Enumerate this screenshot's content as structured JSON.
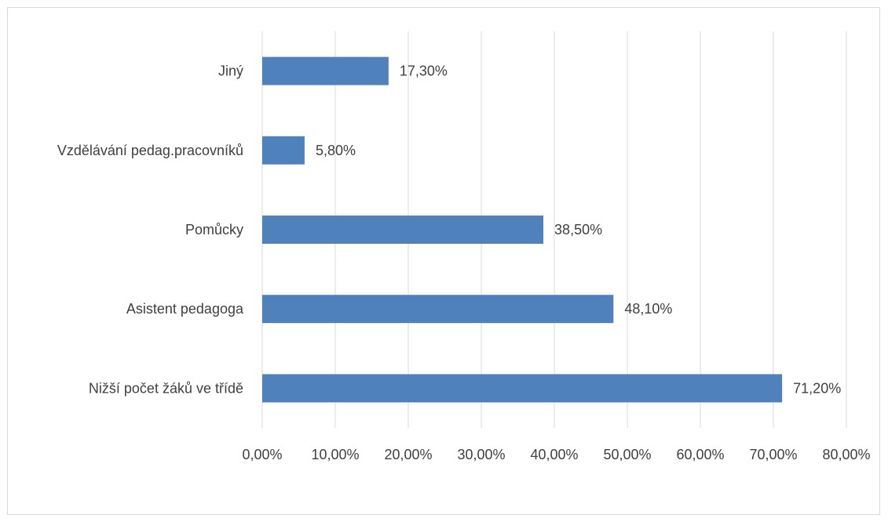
{
  "chart_data": {
    "type": "bar",
    "orientation": "horizontal",
    "title": "",
    "xlabel": "",
    "ylabel": "",
    "categories": [
      "Nižší počet žáků ve třídě",
      "Asistent pedagoga",
      "Pomůcky",
      "Vzdělávání pedag.pracovníků",
      "Jiný"
    ],
    "values": [
      71.2,
      48.1,
      38.5,
      5.8,
      17.3
    ],
    "data_labels": [
      "71,20%",
      "48,10%",
      "38,50%",
      "5,80%",
      "17,30%"
    ],
    "xlim": [
      0,
      80
    ],
    "x_ticks": [
      0,
      10,
      20,
      30,
      40,
      50,
      60,
      70,
      80
    ],
    "x_tick_labels": [
      "0,00%",
      "10,00%",
      "20,00%",
      "30,00%",
      "40,00%",
      "50,00%",
      "60,00%",
      "70,00%",
      "80,00%"
    ],
    "grid": "vertical",
    "legend": "none",
    "bar_color": "#4f81bd",
    "grid_color": "#d9d9d9",
    "text_color": "#404040"
  }
}
